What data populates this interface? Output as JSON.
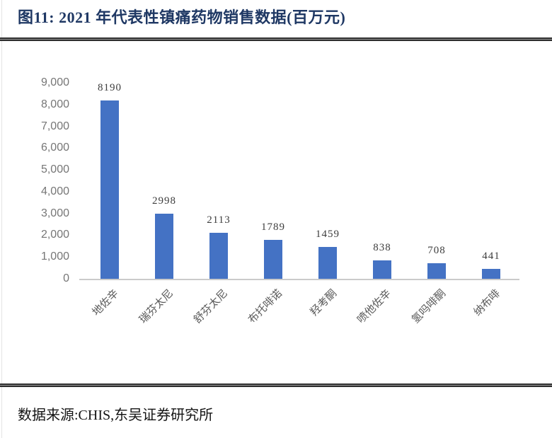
{
  "header": {
    "title": "图11: 2021 年代表性镇痛药物销售数据(百万元)"
  },
  "footer": {
    "source": "数据来源:CHIS,东吴证券研究所"
  },
  "chart_data": {
    "type": "bar",
    "title": "2021 年代表性镇痛药物销售数据(百万元)",
    "categories": [
      "地佐辛",
      "瑞芬太尼",
      "舒芬太尼",
      "布托啡诺",
      "羟考酮",
      "喷他佐辛",
      "氢吗啡酮",
      "纳布啡"
    ],
    "values": [
      8190,
      2998,
      2113,
      1789,
      1459,
      838,
      708,
      441
    ],
    "data_labels": [
      "8190",
      "2998",
      "2113",
      "1789",
      "1459",
      "838",
      "708",
      "441"
    ],
    "xlabel": "",
    "ylabel": "",
    "ylim": [
      0,
      9000
    ],
    "ytick_step": 1000,
    "ytick_labels": [
      "0",
      "1,000",
      "2,000",
      "3,000",
      "4,000",
      "5,000",
      "6,000",
      "7,000",
      "8,000",
      "9,000"
    ],
    "grid": false,
    "legend_position": "none",
    "bar_color": "#4472c4",
    "axis_line_color": "#cbcbcb",
    "tick_label_color": "#767676",
    "category_label_rotation_deg": -45
  },
  "colors": {
    "title": "#1f3864",
    "rule": "#262626",
    "value_label": "#3d3d3d",
    "category_label": "#595959",
    "source_text": "#141414"
  }
}
